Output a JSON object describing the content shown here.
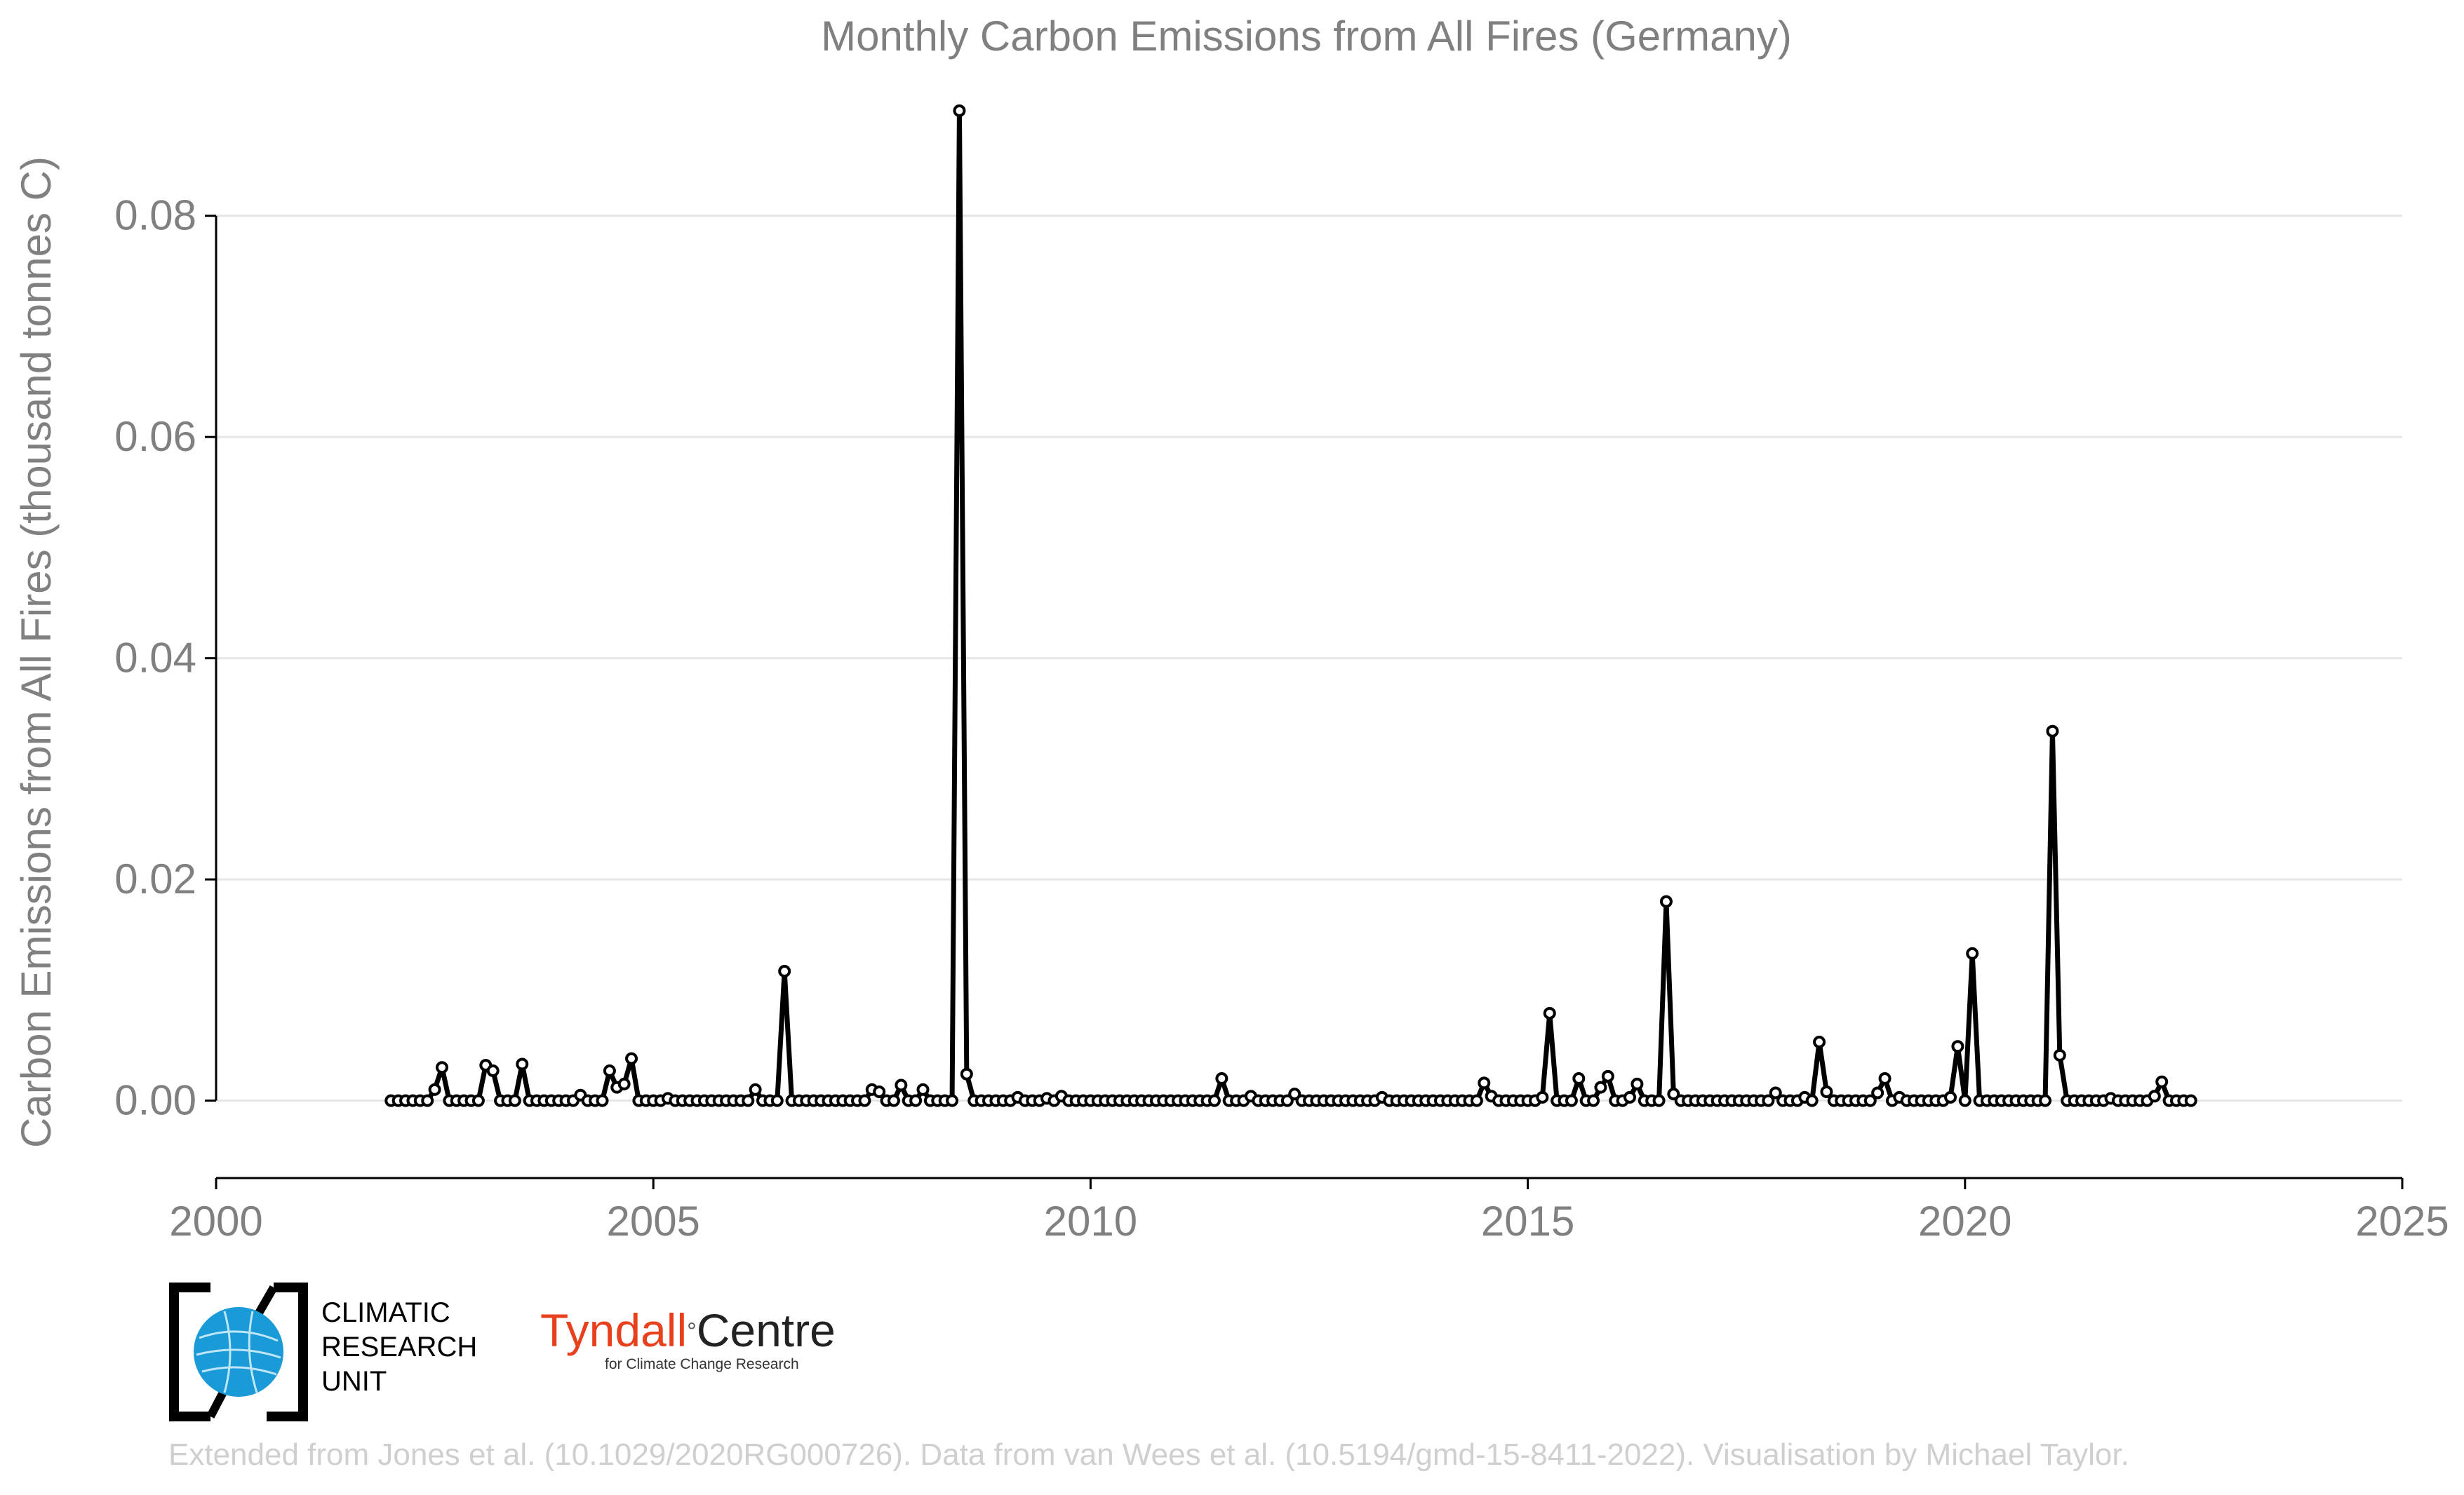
{
  "chart_data": {
    "type": "line",
    "title": "Monthly Carbon Emissions from All Fires (Germany)",
    "xlabel": "",
    "ylabel": "Carbon Emissions from All Fires (thousand tonnes C)",
    "xlim": [
      2000,
      2025
    ],
    "ylim": [
      -0.007,
      0.09
    ],
    "xticks": [
      2000,
      2005,
      2010,
      2015,
      2020,
      2025
    ],
    "yticks": [
      0.0,
      0.02,
      0.04,
      0.06,
      0.08
    ],
    "ytick_labels": [
      "0.00",
      "0.02",
      "0.04",
      "0.06",
      "0.08"
    ],
    "grid": "horizontal",
    "legend": "none",
    "series": [
      {
        "start_date": "2002-01",
        "frequency": "monthly",
        "values": [
          0,
          0,
          0,
          0,
          0,
          0,
          0.001,
          0.003,
          0,
          0,
          0,
          0,
          0,
          0.0032,
          0.0027,
          0,
          0,
          0,
          0.0033,
          0,
          0,
          0,
          0,
          0,
          0,
          0,
          0.0005,
          0,
          0,
          0,
          0.0027,
          0.0012,
          0.0015,
          0.0038,
          0,
          0,
          0,
          0,
          0.0002,
          0,
          0,
          0,
          0,
          0,
          0,
          0,
          0,
          0,
          0,
          0,
          0.001,
          0,
          0,
          0,
          0.0117,
          0,
          0,
          0,
          0,
          0,
          0,
          0,
          0,
          0,
          0,
          0,
          0.001,
          0.0008,
          0,
          0,
          0.0014,
          0,
          0,
          0.001,
          0,
          0,
          0,
          0,
          0.0895,
          0.0024,
          0,
          0,
          0,
          0,
          0,
          0,
          0.0003,
          0,
          0,
          0,
          0.0002,
          0,
          0.0004,
          0,
          0,
          0,
          0,
          0,
          0,
          0,
          0,
          0,
          0,
          0,
          0,
          0,
          0,
          0,
          0,
          0,
          0,
          0,
          0,
          0,
          0.002,
          0,
          0,
          0,
          0.0004,
          0,
          0,
          0,
          0,
          0,
          0.0006,
          0,
          0,
          0,
          0,
          0,
          0,
          0,
          0,
          0,
          0,
          0,
          0.0003,
          0,
          0,
          0,
          0,
          0,
          0,
          0,
          0,
          0,
          0,
          0,
          0,
          0,
          0.0016,
          0.0004,
          0,
          0,
          0,
          0,
          0,
          0,
          0.0003,
          0.0079,
          0,
          0,
          0,
          0.002,
          0,
          0,
          0.0012,
          0.0022,
          0,
          0,
          0.0003,
          0.0015,
          0,
          0,
          0,
          0.018,
          0.0006,
          0,
          0,
          0,
          0,
          0,
          0,
          0,
          0,
          0,
          0,
          0,
          0,
          0,
          0.0007,
          0,
          0,
          0,
          0.0003,
          0,
          0.0053,
          0.0008,
          0,
          0,
          0,
          0,
          0,
          0,
          0.0007,
          0.002,
          0,
          0.0003,
          0,
          0,
          0,
          0,
          0,
          0,
          0.0003,
          0.0049,
          0,
          0.0133,
          0,
          0,
          0,
          0,
          0,
          0,
          0,
          0,
          0,
          0,
          0.0334,
          0.0041,
          0,
          0,
          0,
          0,
          0,
          0,
          0.0002,
          0,
          0,
          0,
          0,
          0,
          0.0004,
          0.0017,
          0,
          0,
          0,
          0
        ]
      }
    ]
  },
  "logos": {
    "cru_lines": [
      "CLIMATIC",
      "RESEARCH",
      "UNIT"
    ],
    "tyndall_name": "Tyndall",
    "tyndall_degree": "°",
    "tyndall_centre": "Centre",
    "tyndall_sub": "for Climate Change Research"
  },
  "credit": "Extended from Jones et al. (10.1029/2020RG000726). Data from van Wees et al. (10.5194/gmd-15-8411-2022). Visualisation by Michael Taylor.",
  "colors": {
    "line": "#000000",
    "marker_fill": "#ffffff",
    "text": "#808080",
    "grid": "#e6e6e6",
    "axis": "#000000",
    "credit": "#cfcfcf",
    "cru_blue": "#1a9ad6",
    "tyndall_red": "#e8401c"
  }
}
